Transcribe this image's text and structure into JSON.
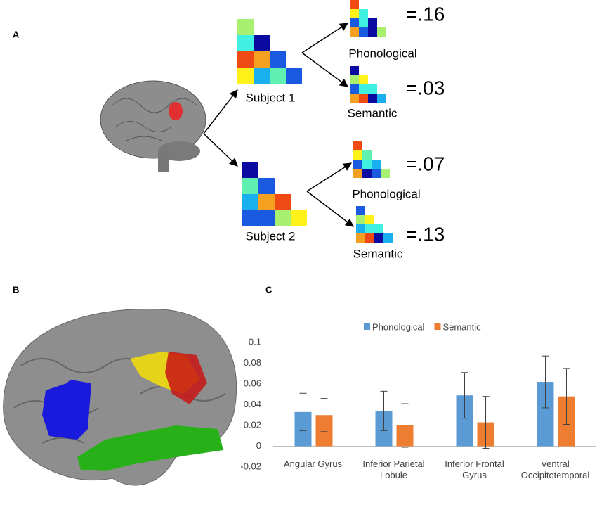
{
  "panel_labels": [
    "A",
    "B",
    "C"
  ],
  "panel_a": {
    "subjects": [
      {
        "label": "Subject 1",
        "comparisons": [
          {
            "label": "Phonological",
            "value": "=.16"
          },
          {
            "label": "Semantic",
            "value": "=.03"
          }
        ]
      },
      {
        "label": "Subject 2",
        "comparisons": [
          {
            "label": "Phonological",
            "value": "=.07"
          },
          {
            "label": "Semantic",
            "value": "=.13"
          }
        ]
      }
    ]
  },
  "chart_data": {
    "type": "bar",
    "categories": [
      "Angular Gyrus",
      "Inferior Parietal Lobule",
      "Inferior Frontal Gyrus",
      "Ventral Occipitotemporal"
    ],
    "series": [
      {
        "name": "Phonological",
        "color": "#5b9bd5",
        "values": [
          0.033,
          0.034,
          0.049,
          0.062
        ],
        "errors": [
          0.018,
          0.019,
          0.022,
          0.025
        ]
      },
      {
        "name": "Semantic",
        "color": "#ed7d31",
        "values": [
          0.03,
          0.02,
          0.023,
          0.048
        ],
        "errors": [
          0.016,
          0.021,
          0.025,
          0.027
        ]
      }
    ],
    "ylim": [
      -0.02,
      0.1
    ],
    "yticks": [
      -0.02,
      0,
      0.02,
      0.04,
      0.06,
      0.08,
      0.1
    ],
    "grid": false,
    "legend": "top"
  }
}
